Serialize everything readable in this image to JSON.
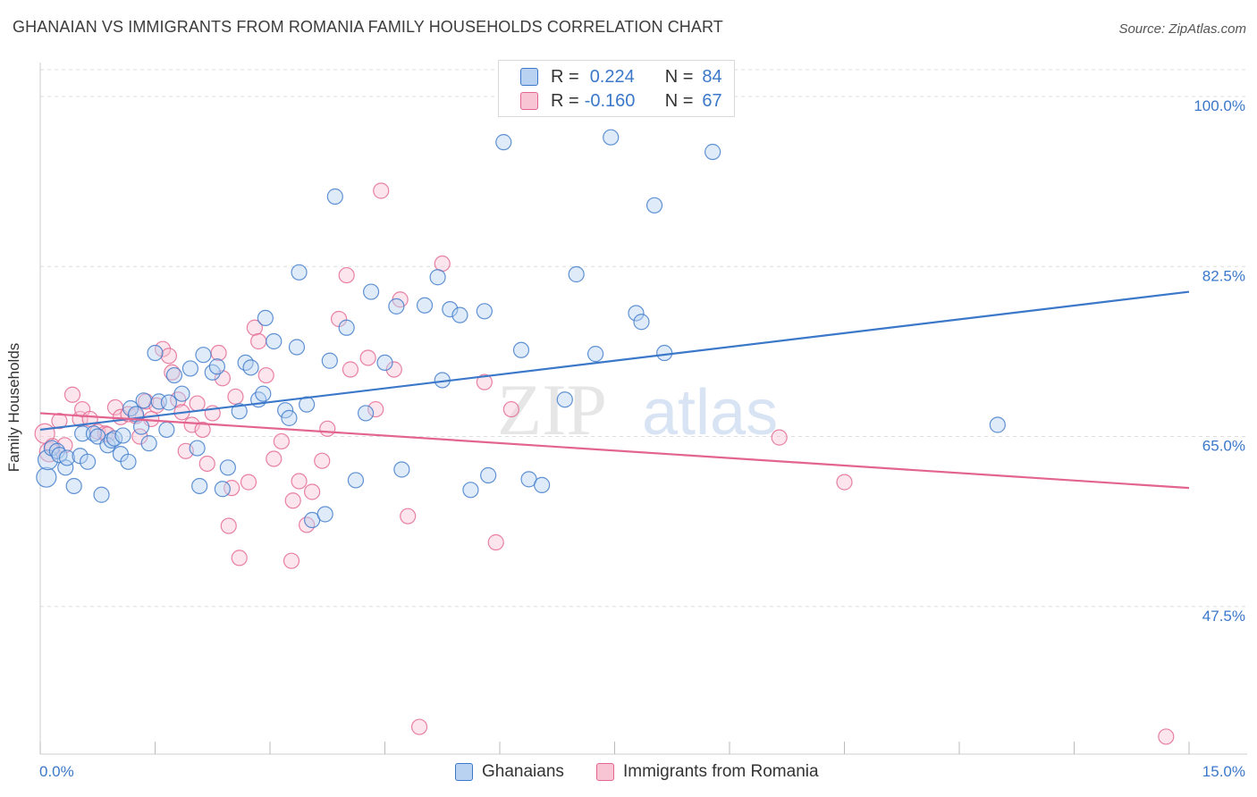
{
  "title": "GHANAIAN VS IMMIGRANTS FROM ROMANIA FAMILY HOUSEHOLDS CORRELATION CHART",
  "source": "Source: ZipAtlas.com",
  "watermark": {
    "zip": "ZIP",
    "atlas": "atlas"
  },
  "legend_top": {
    "rows": [
      {
        "r_label": "R =",
        "r_value": "0.224",
        "n_label": "N =",
        "n_value": "84"
      },
      {
        "r_label": "R =",
        "r_value": "-0.160",
        "n_label": "N =",
        "n_value": "67"
      }
    ]
  },
  "chart_data": {
    "type": "scatter",
    "ylabel": "Family Households",
    "xlabel": "",
    "xlim": [
      0.0,
      15.0
    ],
    "ylim": [
      32.3,
      103.5
    ],
    "x_tick_labels": {
      "min": "0.0%",
      "max": "15.0%"
    },
    "y_ticks": [
      {
        "value": 100.0,
        "label": "100.0%"
      },
      {
        "value": 82.5,
        "label": "82.5%"
      },
      {
        "value": 65.0,
        "label": "65.0%"
      },
      {
        "value": 47.5,
        "label": "47.5%"
      }
    ],
    "grid": "horizontal dashed",
    "colors": {
      "blue": "#3b78c9",
      "blue_fill": "#b9d2f2",
      "pink": "#e2648f",
      "pink_fill": "#f8c5d4"
    },
    "series": [
      {
        "name": "Ghanaians",
        "color": "#3b78c9",
        "trend": {
          "x": [
            0.0,
            15.0
          ],
          "y": [
            65.7,
            79.9
          ]
        },
        "points": [
          [
            0.08,
            60.8
          ],
          [
            0.1,
            62.6
          ],
          [
            0.15,
            63.8
          ],
          [
            0.22,
            63.5
          ],
          [
            0.25,
            63.1
          ],
          [
            0.33,
            61.8
          ],
          [
            0.35,
            62.8
          ],
          [
            0.44,
            59.9
          ],
          [
            0.52,
            63.0
          ],
          [
            0.55,
            65.3
          ],
          [
            0.62,
            62.4
          ],
          [
            0.7,
            65.3
          ],
          [
            0.75,
            65.0
          ],
          [
            0.8,
            59.0
          ],
          [
            0.88,
            64.1
          ],
          [
            0.93,
            64.6
          ],
          [
            0.97,
            64.8
          ],
          [
            1.05,
            63.2
          ],
          [
            1.08,
            65.1
          ],
          [
            1.15,
            62.4
          ],
          [
            1.18,
            67.9
          ],
          [
            1.25,
            67.3
          ],
          [
            1.32,
            66.0
          ],
          [
            1.35,
            68.7
          ],
          [
            1.42,
            64.3
          ],
          [
            1.5,
            73.6
          ],
          [
            1.55,
            68.6
          ],
          [
            1.65,
            65.7
          ],
          [
            1.68,
            68.5
          ],
          [
            1.75,
            71.3
          ],
          [
            1.85,
            69.4
          ],
          [
            1.96,
            72.0
          ],
          [
            2.05,
            63.8
          ],
          [
            2.08,
            59.9
          ],
          [
            2.13,
            73.4
          ],
          [
            2.25,
            71.6
          ],
          [
            2.31,
            72.2
          ],
          [
            2.38,
            59.6
          ],
          [
            2.45,
            61.8
          ],
          [
            2.6,
            67.6
          ],
          [
            2.68,
            72.6
          ],
          [
            2.75,
            72.1
          ],
          [
            2.85,
            68.8
          ],
          [
            2.91,
            69.4
          ],
          [
            2.94,
            77.2
          ],
          [
            3.05,
            74.8
          ],
          [
            3.2,
            67.7
          ],
          [
            3.25,
            66.9
          ],
          [
            3.35,
            74.2
          ],
          [
            3.38,
            81.9
          ],
          [
            3.48,
            68.3
          ],
          [
            3.55,
            56.4
          ],
          [
            3.72,
            57.0
          ],
          [
            3.78,
            72.8
          ],
          [
            3.85,
            89.7
          ],
          [
            4.0,
            76.2
          ],
          [
            4.12,
            60.5
          ],
          [
            4.25,
            67.4
          ],
          [
            4.32,
            79.9
          ],
          [
            4.5,
            72.6
          ],
          [
            4.65,
            78.4
          ],
          [
            4.72,
            61.6
          ],
          [
            5.02,
            78.5
          ],
          [
            5.19,
            81.4
          ],
          [
            5.25,
            70.8
          ],
          [
            5.35,
            78.1
          ],
          [
            5.48,
            77.5
          ],
          [
            5.62,
            59.5
          ],
          [
            5.8,
            77.9
          ],
          [
            5.85,
            61.0
          ],
          [
            6.05,
            95.3
          ],
          [
            6.28,
            73.9
          ],
          [
            6.38,
            60.6
          ],
          [
            6.55,
            60.0
          ],
          [
            6.85,
            68.8
          ],
          [
            7.0,
            81.7
          ],
          [
            7.25,
            73.5
          ],
          [
            7.45,
            95.8
          ],
          [
            7.78,
            77.7
          ],
          [
            7.85,
            76.8
          ],
          [
            8.02,
            88.8
          ],
          [
            8.15,
            73.6
          ],
          [
            8.78,
            94.3
          ],
          [
            12.5,
            66.2
          ]
        ]
      },
      {
        "name": "Immigrants from Romania",
        "color": "#e2648f",
        "trend": {
          "x": [
            0.0,
            15.0
          ],
          "y": [
            67.4,
            59.7
          ]
        },
        "points": [
          [
            0.06,
            65.3
          ],
          [
            0.12,
            63.4
          ],
          [
            0.16,
            64.0
          ],
          [
            0.25,
            66.6
          ],
          [
            0.32,
            64.1
          ],
          [
            0.42,
            69.3
          ],
          [
            0.52,
            66.8
          ],
          [
            0.55,
            67.8
          ],
          [
            0.65,
            66.8
          ],
          [
            0.75,
            65.5
          ],
          [
            0.85,
            65.3
          ],
          [
            0.88,
            65.2
          ],
          [
            0.98,
            68.0
          ],
          [
            1.05,
            67.0
          ],
          [
            1.15,
            67.3
          ],
          [
            1.25,
            67.1
          ],
          [
            1.3,
            65.0
          ],
          [
            1.38,
            68.6
          ],
          [
            1.45,
            66.8
          ],
          [
            1.52,
            68.2
          ],
          [
            1.6,
            74.0
          ],
          [
            1.68,
            73.3
          ],
          [
            1.72,
            71.6
          ],
          [
            1.8,
            68.8
          ],
          [
            1.85,
            67.5
          ],
          [
            1.9,
            63.5
          ],
          [
            1.98,
            66.2
          ],
          [
            2.05,
            68.4
          ],
          [
            2.12,
            65.7
          ],
          [
            2.18,
            62.2
          ],
          [
            2.25,
            67.4
          ],
          [
            2.33,
            73.6
          ],
          [
            2.38,
            71.0
          ],
          [
            2.46,
            55.8
          ],
          [
            2.5,
            59.7
          ],
          [
            2.55,
            69.1
          ],
          [
            2.6,
            52.5
          ],
          [
            2.72,
            60.3
          ],
          [
            2.8,
            76.2
          ],
          [
            2.85,
            74.8
          ],
          [
            2.95,
            71.3
          ],
          [
            3.05,
            62.7
          ],
          [
            3.15,
            64.5
          ],
          [
            3.28,
            52.2
          ],
          [
            3.3,
            58.4
          ],
          [
            3.38,
            60.4
          ],
          [
            3.48,
            55.9
          ],
          [
            3.55,
            59.3
          ],
          [
            3.68,
            62.5
          ],
          [
            3.75,
            65.8
          ],
          [
            3.9,
            77.1
          ],
          [
            4.0,
            81.6
          ],
          [
            4.05,
            71.9
          ],
          [
            4.28,
            73.1
          ],
          [
            4.38,
            67.8
          ],
          [
            4.45,
            90.3
          ],
          [
            4.62,
            71.9
          ],
          [
            4.7,
            79.1
          ],
          [
            4.8,
            56.8
          ],
          [
            4.95,
            35.1
          ],
          [
            5.25,
            82.8
          ],
          [
            5.8,
            70.6
          ],
          [
            5.95,
            54.1
          ],
          [
            6.15,
            67.8
          ],
          [
            9.65,
            64.9
          ],
          [
            10.5,
            60.3
          ],
          [
            14.7,
            34.1
          ]
        ]
      }
    ]
  },
  "legend_bottom": [
    {
      "label": "Ghanaians"
    },
    {
      "label": "Immigrants from Romania"
    }
  ]
}
